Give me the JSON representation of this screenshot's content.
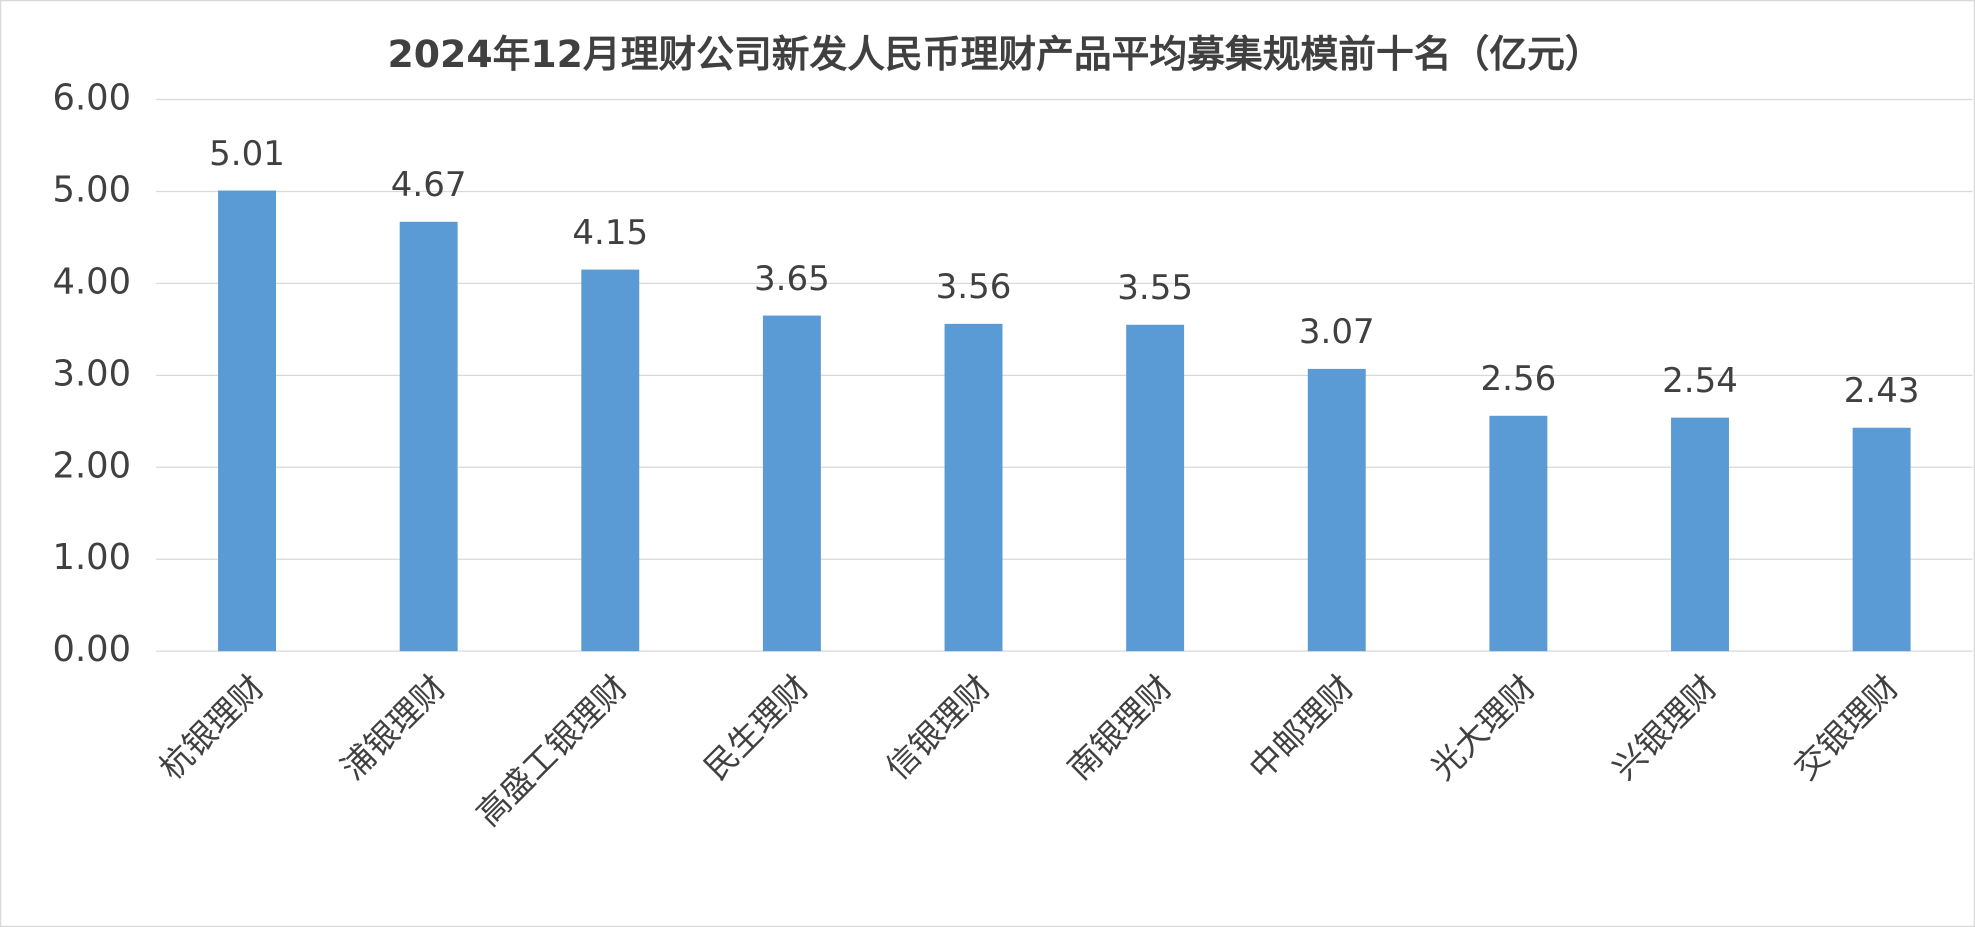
{
  "chart_data": {
    "type": "bar",
    "title": "2024年12月理财公司新发人民币理财产品平均募集规模前十名（亿元）",
    "categories": [
      "杭银理财",
      "浦银理财",
      "高盛工银理财",
      "民生理财",
      "信银理财",
      "南银理财",
      "中邮理财",
      "光大理财",
      "兴银理财",
      "交银理财"
    ],
    "values": [
      5.01,
      4.67,
      4.15,
      3.65,
      3.56,
      3.55,
      3.07,
      2.56,
      2.54,
      2.43
    ],
    "color": "#5b9bd5",
    "ylim": [
      0,
      6
    ],
    "yticks": [
      {
        "value": 0,
        "label": "0.00"
      },
      {
        "value": 1,
        "label": "1.00"
      },
      {
        "value": 2,
        "label": "2.00"
      },
      {
        "value": 3,
        "label": "3.00"
      },
      {
        "value": 4,
        "label": "4.00"
      },
      {
        "value": 5,
        "label": "5.00"
      },
      {
        "value": 6,
        "label": "6.00"
      }
    ],
    "grid": true
  }
}
